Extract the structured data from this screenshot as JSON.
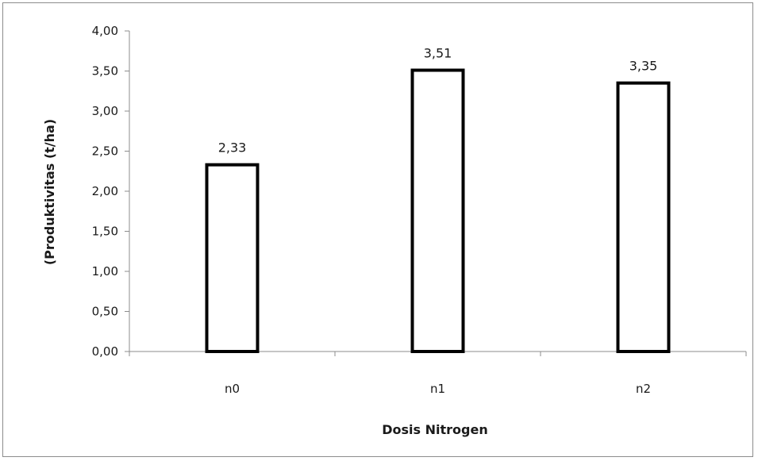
{
  "chart_data": {
    "type": "bar",
    "categories": [
      "n0",
      "n1",
      "n2"
    ],
    "values": [
      2.33,
      3.51,
      3.35
    ],
    "data_labels": [
      "2,33",
      "3,51",
      "3,35"
    ],
    "title": "",
    "xlabel": "Dosis Nitrogen",
    "ylabel": "(Produktivitas (t/ha)",
    "ylim": [
      0,
      4
    ],
    "yticks": [
      0,
      0.5,
      1,
      1.5,
      2,
      2.5,
      3,
      3.5,
      4
    ],
    "ytick_labels": [
      "0,00",
      "0,50",
      "1,00",
      "1,50",
      "2,00",
      "2,50",
      "3,00",
      "3,50",
      "4,00"
    ],
    "grid": false,
    "legend": "none",
    "colors": {
      "bar_fill": "#ffffff",
      "bar_stroke": "#000000",
      "axis": "#8c8c8c",
      "text": "#1a1a1a"
    }
  }
}
